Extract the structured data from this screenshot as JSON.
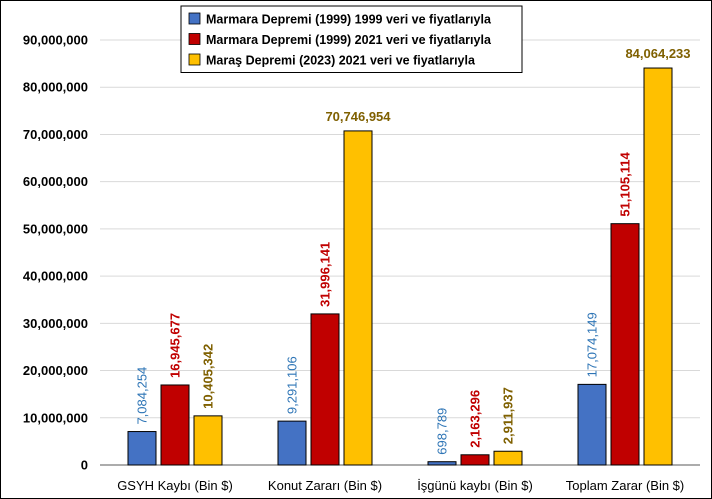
{
  "chart_data": {
    "type": "bar",
    "categories": [
      "GSYH Kaybı (Bin $)",
      "Konut Zararı (Bin $)",
      "İşgünü kaybı (Bin $)",
      "Toplam Zarar (Bin $)"
    ],
    "series": [
      {
        "name": "Marmara Depremi (1999) 1999 veri ve fiyatlarıyla",
        "color": "#4472C4",
        "label_color": "#2E75B6",
        "values": [
          7084254,
          9291106,
          698789,
          17074149
        ],
        "labels": [
          "7,084,254",
          "9,291,106",
          "698,789",
          "17,074,149"
        ]
      },
      {
        "name": "Marmara Depremi (1999) 2021 veri ve fiyatlarıyla",
        "color": "#C00000",
        "label_color": "#C00000",
        "values": [
          16945677,
          31996141,
          2163296,
          51105114
        ],
        "labels": [
          "16,945,677",
          "31,996,141",
          "2,163,296",
          "51,105,114"
        ]
      },
      {
        "name": "Maraş Depremi (2023) 2021 veri ve fiyatlarıyla",
        "color": "#FFC000",
        "label_color": "#7F6000",
        "values": [
          10405342,
          70746954,
          2911937,
          84064233
        ],
        "labels": [
          "10,405,342",
          "70,746,954",
          "2,911,937",
          "84,064,233"
        ]
      }
    ],
    "ylim": [
      0,
      90000000
    ],
    "yticks": [
      "0",
      "10,000,000",
      "20,000,000",
      "30,000,000",
      "40,000,000",
      "50,000,000",
      "60,000,000",
      "70,000,000",
      "80,000,000",
      "90,000,000"
    ],
    "grid": true,
    "legend_position": "top-center"
  }
}
